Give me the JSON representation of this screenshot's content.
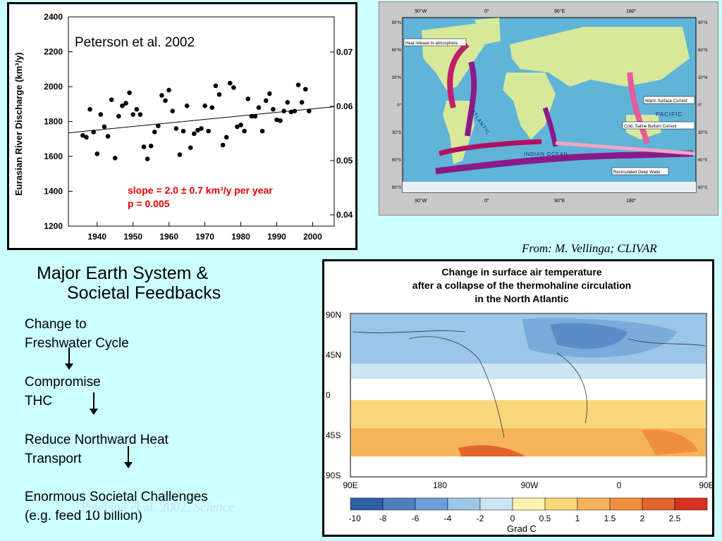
{
  "scatter": {
    "annotation": "Peterson et al. 2002",
    "ylabel": "Eurasian River Discharge (km³/y)",
    "slope_text": "slope = 2.0 ± 0.7 km³/y per year",
    "p_text": "p = 0.005",
    "y_ticks": [
      "2400",
      "2200",
      "2000",
      "1800",
      "1600",
      "1400",
      "1200"
    ],
    "right_ticks": [
      "0.07",
      "0.06",
      "0.05",
      "0.04"
    ],
    "x_ticks": [
      "1940",
      "1950",
      "1960",
      "1970",
      "1980",
      "1990",
      "2000"
    ]
  },
  "chart_data": {
    "type": "scatter",
    "xlim": [
      1932,
      2006
    ],
    "ylim": [
      1200,
      2400
    ],
    "x": [
      1936,
      1937,
      1938,
      1939,
      1940,
      1941,
      1942,
      1943,
      1944,
      1945,
      1946,
      1947,
      1948,
      1949,
      1950,
      1951,
      1952,
      1953,
      1954,
      1955,
      1956,
      1957,
      1958,
      1959,
      1960,
      1961,
      1962,
      1963,
      1964,
      1965,
      1966,
      1967,
      1968,
      1969,
      1970,
      1971,
      1972,
      1973,
      1974,
      1975,
      1976,
      1977,
      1978,
      1979,
      1980,
      1981,
      1982,
      1983,
      1984,
      1985,
      1986,
      1987,
      1988,
      1989,
      1990,
      1991,
      1992,
      1993,
      1994,
      1995,
      1996,
      1997,
      1998,
      1999
    ],
    "y": [
      1720,
      1710,
      1870,
      1740,
      1615,
      1840,
      1770,
      1715,
      1925,
      1590,
      1830,
      1890,
      1905,
      1965,
      1840,
      1870,
      1840,
      1655,
      1585,
      1660,
      1740,
      1775,
      1950,
      1920,
      1980,
      1860,
      1760,
      1610,
      1745,
      1890,
      1650,
      1730,
      1750,
      1760,
      1890,
      1745,
      1880,
      2005,
      1955,
      1665,
      1710,
      2020,
      1995,
      1770,
      1780,
      1745,
      1930,
      1830,
      1830,
      1880,
      1745,
      1920,
      1960,
      1870,
      1810,
      1805,
      1860,
      1910,
      1855,
      1860,
      2010,
      1910,
      1985,
      1860
    ],
    "trend": [
      [
        1932,
        1735
      ],
      [
        2006,
        1885
      ]
    ]
  },
  "map": {
    "top_lon": [
      "90°W",
      "0°",
      "90°E",
      "180°"
    ],
    "bottom_lon": [
      "90°W",
      "0°",
      "90°E",
      "180°"
    ],
    "lat": [
      "90°N",
      "60°N",
      "30°N",
      "0°",
      "30°S",
      "60°S",
      "90°S"
    ],
    "labels": {
      "heat": "Heat release to atmosphere",
      "warm": "Warm Surface Current",
      "pacific": "PACIFIC",
      "cold": "Cold, Saline Bottom Current",
      "atlantic": "ATLANTIC",
      "indian": "INDIAN OCEAN",
      "recirc": "Recirculated Deep Water"
    }
  },
  "credit": "From: M. Vellinga; CLIVAR",
  "feedbacks": {
    "title_line1": "Major Earth System &",
    "title_line2": "Societal Feedbacks",
    "items": [
      {
        "line1": "Change to",
        "line2": "Freshwater Cycle"
      },
      {
        "line1": "Compromise",
        "line2": "THC"
      },
      {
        "line1": "Reduce Northward Heat",
        "line2": "Transport"
      },
      {
        "line1": "Enormous Societal Challenges",
        "line2": "(e.g. feed 10 billion)"
      }
    ]
  },
  "watermark": {
    "text": "Peterson et al. 2002, ",
    "journal": "Science"
  },
  "temp_map": {
    "title1": "Change in surface air temperature",
    "title2": "after a collapse of the thermohaline circulation",
    "title3": "in the North Atlantic",
    "lat_labels": [
      "90N",
      "45N",
      "0",
      "45S",
      "90S"
    ],
    "lon_labels": [
      "90E",
      "180",
      "90W",
      "0",
      "90E"
    ],
    "colorbar_ticks": [
      "-10",
      "-8",
      "-6",
      "-4",
      "-2",
      "0",
      "0.5",
      "1",
      "1.5",
      "2",
      "2.5"
    ],
    "colorbar_colors": [
      "#2c5fa6",
      "#4d7fc0",
      "#6d9fd6",
      "#9cc6e8",
      "#cce5f2",
      "#fff2b0",
      "#fbd77c",
      "#f6b45a",
      "#ef8f3e",
      "#e3642d",
      "#d63220"
    ],
    "unit": "Grad C"
  }
}
